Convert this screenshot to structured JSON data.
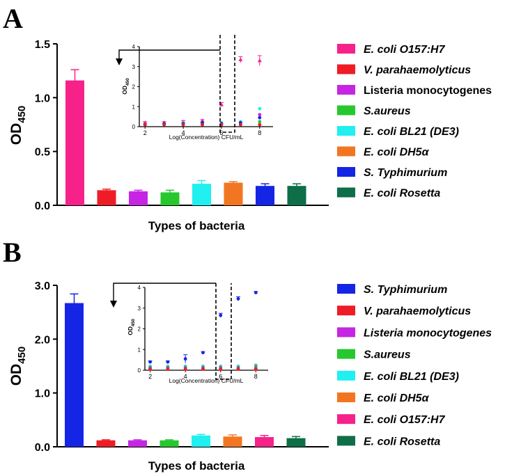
{
  "chart_data": [
    {
      "panel": "A",
      "type": "bar",
      "xlabel": "Types of bacteria",
      "ylabel": "OD",
      "ylabel_sub": "450",
      "ylim": [
        0,
        1.5
      ],
      "ytick_labels": [
        "0.0",
        "0.5",
        "1.0",
        "1.5"
      ],
      "categories": [
        "E. coli O157:H7",
        "V. parahaemolyticus",
        "Listeria monocytogenes",
        "S.aureus",
        "E. coli BL21 (DE3)",
        "E. coli DH5α",
        "S. Typhimurium",
        "E. coli Rosetta"
      ],
      "italic": [
        true,
        true,
        false,
        true,
        true,
        true,
        true,
        true
      ],
      "colors": [
        "#f7218a",
        "#ee1c25",
        "#c626e3",
        "#26c82e",
        "#20f0ef",
        "#f27622",
        "#1525e6",
        "#0e6e48"
      ],
      "values": [
        1.16,
        0.14,
        0.13,
        0.12,
        0.2,
        0.21,
        0.18,
        0.18
      ],
      "errors": [
        0.1,
        0.01,
        0.01,
        0.02,
        0.03,
        0.01,
        0.02,
        0.02
      ],
      "legend_position": "right",
      "inset": {
        "type": "scatter",
        "xlabel": "Log(Concentration) CFU/mL",
        "ylabel": "OD",
        "ylabel_sub": "450",
        "xlim": [
          1.7,
          8.7
        ],
        "ylim": [
          0,
          4
        ],
        "xtick_labels": [
          "2",
          "4",
          "6",
          "8"
        ],
        "ytick_labels": [
          "0",
          "1",
          "2",
          "3",
          "4"
        ],
        "x": [
          2,
          3,
          4,
          5,
          6,
          7,
          8
        ],
        "highlight_x": 6,
        "series": [
          {
            "color": "#f7218a",
            "marker": "triangle",
            "values": [
              0.2,
              0.2,
              0.25,
              0.3,
              1.1,
              3.35,
              3.3
            ],
            "errors": [
              0.05,
              0.05,
              0.05,
              0.05,
              0.1,
              0.15,
              0.25
            ]
          },
          {
            "color": "#20f0ef",
            "marker": "circle",
            "values": [
              0.15,
              0.15,
              0.2,
              0.2,
              0.2,
              0.25,
              0.9
            ]
          },
          {
            "color": "#c626e3",
            "marker": "circle",
            "values": [
              0.15,
              0.15,
              0.15,
              0.15,
              0.15,
              0.15,
              0.6
            ]
          },
          {
            "color": "#1525e6",
            "marker": "circle",
            "values": [
              0.1,
              0.15,
              0.15,
              0.2,
              0.15,
              0.2,
              0.45
            ]
          },
          {
            "color": "#26c82e",
            "marker": "circle",
            "values": [
              0.1,
              0.1,
              0.1,
              0.1,
              0.1,
              0.1,
              0.25
            ]
          },
          {
            "color": "#ee1c25",
            "marker": "circle",
            "values": [
              0.1,
              0.1,
              0.1,
              0.1,
              0.1,
              0.1,
              0.1
            ]
          }
        ]
      }
    },
    {
      "panel": "B",
      "type": "bar",
      "xlabel": "Types of bacteria",
      "ylabel": "OD",
      "ylabel_sub": "450",
      "ylim": [
        0,
        3.0
      ],
      "ytick_labels": [
        "0.0",
        "1.0",
        "2.0",
        "3.0"
      ],
      "categories": [
        "S. Typhimurium",
        "V. parahaemolyticus",
        "Listeria monocytogenes",
        "S.aureus",
        "E. coli BL21 (DE3)",
        "E. coli DH5α",
        "E. coli O157:H7",
        "E. coli Rosetta"
      ],
      "italic": [
        true,
        true,
        true,
        true,
        true,
        true,
        true,
        true
      ],
      "colors": [
        "#1525e6",
        "#ee1c25",
        "#c626e3",
        "#26c82e",
        "#20f0ef",
        "#f27622",
        "#f7218a",
        "#0e6e48"
      ],
      "values": [
        2.67,
        0.12,
        0.12,
        0.12,
        0.21,
        0.19,
        0.18,
        0.16
      ],
      "errors": [
        0.17,
        0.01,
        0.01,
        0.01,
        0.02,
        0.03,
        0.03,
        0.03
      ],
      "legend_position": "right",
      "inset": {
        "type": "scatter",
        "xlabel": "Log(Concentration) CFU/mL",
        "ylabel": "OD",
        "ylabel_sub": "450",
        "xlim": [
          1.7,
          8.7
        ],
        "ylim": [
          0,
          4
        ],
        "xtick_labels": [
          "2",
          "4",
          "6",
          "8"
        ],
        "ytick_labels": [
          "0",
          "1",
          "2",
          "3",
          "4"
        ],
        "x": [
          2,
          3,
          4,
          5,
          6,
          7,
          8
        ],
        "highlight_x": 6,
        "series": [
          {
            "color": "#1525e6",
            "marker": "circle",
            "values": [
              0.4,
              0.4,
              0.55,
              0.85,
              2.65,
              3.45,
              3.75
            ],
            "errors": [
              0.05,
              0.05,
              0.2,
              0.05,
              0.1,
              0.1,
              0.05
            ]
          },
          {
            "color": "#20f0ef",
            "marker": "circle",
            "values": [
              0.2,
              0.2,
              0.2,
              0.2,
              0.2,
              0.2,
              0.25
            ]
          },
          {
            "color": "#26c82e",
            "marker": "circle",
            "values": [
              0.15,
              0.15,
              0.15,
              0.15,
              0.15,
              0.15,
              0.2
            ]
          },
          {
            "color": "#c626e3",
            "marker": "circle",
            "values": [
              0.1,
              0.1,
              0.1,
              0.1,
              0.1,
              0.1,
              0.1
            ]
          },
          {
            "color": "#ee1c25",
            "marker": "circle",
            "values": [
              0.05,
              0.05,
              0.05,
              0.05,
              0.05,
              0.05,
              0.05
            ]
          }
        ]
      }
    }
  ]
}
